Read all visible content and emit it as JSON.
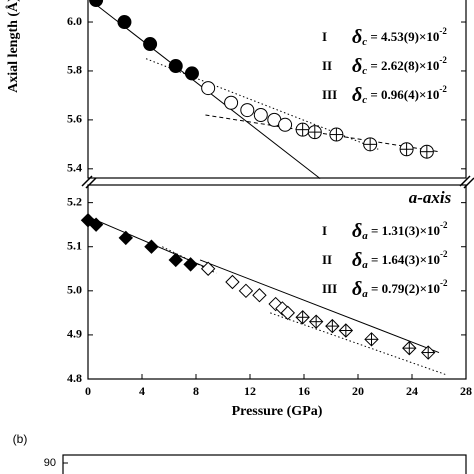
{
  "chart_data": [
    {
      "type": "scatter",
      "ylabel": "Axial length (Å)",
      "xlim": [
        0,
        28
      ],
      "ylim": [
        5.36,
        6.09
      ],
      "yticks": [
        5.4,
        5.6,
        5.8,
        {
          "value": 6,
          "label": "6.0"
        }
      ],
      "series": [
        {
          "marker": "circle",
          "fill": "filled",
          "x": [
            0.6,
            2.7,
            4.6,
            6.5,
            7.7
          ],
          "values": [
            6.09,
            6.0,
            5.91,
            5.82,
            5.79
          ]
        },
        {
          "marker": "circle",
          "fill": "open",
          "x": [
            8.9,
            10.6,
            11.8,
            12.8,
            13.8,
            14.6
          ],
          "values": [
            5.73,
            5.67,
            5.64,
            5.62,
            5.6,
            5.58
          ]
        },
        {
          "marker": "circle",
          "fill": "crossed",
          "x": [
            15.9,
            16.8,
            18.4,
            20.9,
            23.6,
            25.1
          ],
          "values": [
            5.56,
            5.55,
            5.54,
            5.5,
            5.48,
            5.47
          ]
        }
      ],
      "fits": [
        {
          "dash": "solid",
          "x": [
            0.15,
            17.2
          ],
          "values": [
            6.09,
            5.36
          ]
        },
        {
          "dash": "dotted",
          "x": [
            4.3,
            21.5
          ],
          "values": [
            5.85,
            5.48
          ]
        },
        {
          "dash": "dashed",
          "x": [
            8.7,
            26
          ],
          "values": [
            5.62,
            5.47
          ]
        }
      ],
      "annotations": [
        {
          "roman": "I",
          "symbol": "δ",
          "sub": "c",
          "text": " = 4.53(9)×10",
          "exp": "-2"
        },
        {
          "roman": "II",
          "symbol": "δ",
          "sub": "c",
          "text": " = 2.62(8)×10",
          "exp": "-2"
        },
        {
          "roman": "III",
          "symbol": "δ",
          "sub": "c",
          "text": " = 0.96(4)×10",
          "exp": "-2"
        }
      ]
    },
    {
      "type": "scatter",
      "title": "a-axis",
      "xlabel": "Pressure (GPa)",
      "xlim": [
        0,
        28
      ],
      "xticks": [
        0,
        4,
        8,
        12,
        16,
        20,
        24,
        28
      ],
      "ylim": [
        4.8,
        5.24
      ],
      "yticks": [
        4.8,
        4.9,
        {
          "value": 5,
          "label": "5.0"
        },
        5.1,
        5.2
      ],
      "series": [
        {
          "marker": "diamond",
          "fill": "filled",
          "x": [
            0,
            0.6,
            2.8,
            4.7,
            6.5,
            7.6
          ],
          "values": [
            5.16,
            5.15,
            5.12,
            5.1,
            5.07,
            5.06
          ]
        },
        {
          "marker": "diamond",
          "fill": "open",
          "x": [
            8.9,
            10.7,
            11.7,
            12.7,
            13.9,
            14.4,
            14.8
          ],
          "values": [
            5.05,
            5.02,
            5.0,
            4.99,
            4.97,
            4.96,
            4.95
          ]
        },
        {
          "marker": "diamond",
          "fill": "crossed",
          "x": [
            15.9,
            16.9,
            18.1,
            19.1,
            21.0,
            23.8,
            25.2
          ],
          "values": [
            4.94,
            4.93,
            4.92,
            4.91,
            4.89,
            4.87,
            4.86
          ]
        }
      ],
      "fits": [
        {
          "dash": "solid",
          "x": [
            0,
            9
          ],
          "values": [
            5.168,
            5.05
          ]
        },
        {
          "dash": "dotted",
          "x": [
            5.5,
            9.5
          ],
          "values": [
            5.1,
            5.04
          ]
        },
        {
          "dash": "solid",
          "x": [
            8.3,
            26
          ],
          "values": [
            5.07,
            4.86
          ]
        },
        {
          "dash": "dotted",
          "x": [
            13.5,
            26.5
          ],
          "values": [
            4.95,
            4.81
          ]
        }
      ],
      "annotations": [
        {
          "roman": "I",
          "symbol": "δ",
          "sub": "a",
          "text": " = 1.31(3)×10",
          "exp": "-2"
        },
        {
          "roman": "II",
          "symbol": "δ",
          "sub": "a",
          "text": " = 1.64(3)×10",
          "exp": "-2"
        },
        {
          "roman": "III",
          "symbol": "δ",
          "sub": "a",
          "text": " = 0.79(2)×10",
          "exp": "-2"
        }
      ]
    },
    {
      "type": "frame",
      "label": "(b)",
      "yticks": [
        90
      ]
    }
  ]
}
